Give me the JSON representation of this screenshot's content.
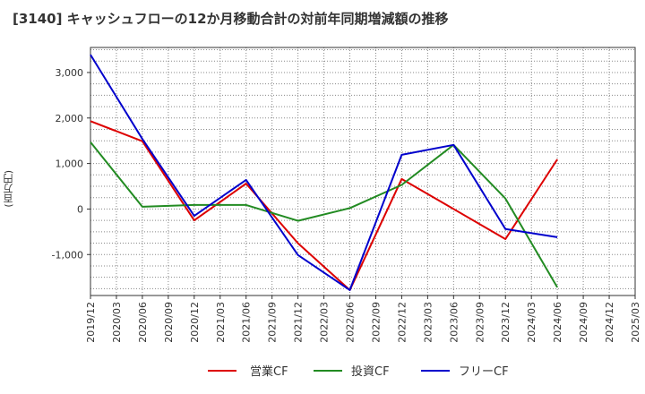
{
  "title": "[3140]  キャッシュフローの12か月移動合計の対前年同期増減額の推移",
  "chart_data": {
    "type": "line",
    "title": "[3140]  キャッシュフローの12か月移動合計の対前年同期増減額の推移",
    "xlabel": "",
    "ylabel": "(百万円)",
    "categories": [
      "2019/12",
      "2020/03",
      "2020/06",
      "2020/09",
      "2020/12",
      "2021/03",
      "2021/06",
      "2021/09",
      "2021/12",
      "2022/03",
      "2022/06",
      "2022/09",
      "2022/12",
      "2023/03",
      "2023/06",
      "2023/09",
      "2023/12",
      "2024/03",
      "2024/06",
      "2024/09",
      "2024/12",
      "2025/03"
    ],
    "yticks": [
      -1000,
      0,
      1000,
      2000,
      3000
    ],
    "ytick_labels": [
      "-1,000",
      "0",
      "1,000",
      "2,000",
      "3,000"
    ],
    "ylim": [
      -1900,
      3550
    ],
    "grid": true,
    "legend_position": "bottom",
    "series": [
      {
        "name": "営業CF",
        "color": "#dd0000",
        "values": [
          1930,
          null,
          1490,
          null,
          -250,
          null,
          560,
          null,
          -750,
          null,
          -1780,
          null,
          660,
          null,
          0,
          null,
          -660,
          null,
          1090,
          null,
          null,
          null
        ]
      },
      {
        "name": "投資CF",
        "color": "#228b22",
        "values": [
          1470,
          null,
          50,
          null,
          90,
          null,
          90,
          null,
          -260,
          null,
          20,
          null,
          530,
          null,
          1410,
          null,
          230,
          null,
          -1720,
          null,
          null,
          null
        ]
      },
      {
        "name": "フリーCF",
        "color": "#0000cc",
        "values": [
          3390,
          null,
          1540,
          null,
          -150,
          null,
          640,
          null,
          -1010,
          null,
          -1780,
          null,
          1190,
          null,
          1410,
          null,
          -440,
          null,
          -620,
          null,
          null,
          null
        ]
      }
    ]
  }
}
